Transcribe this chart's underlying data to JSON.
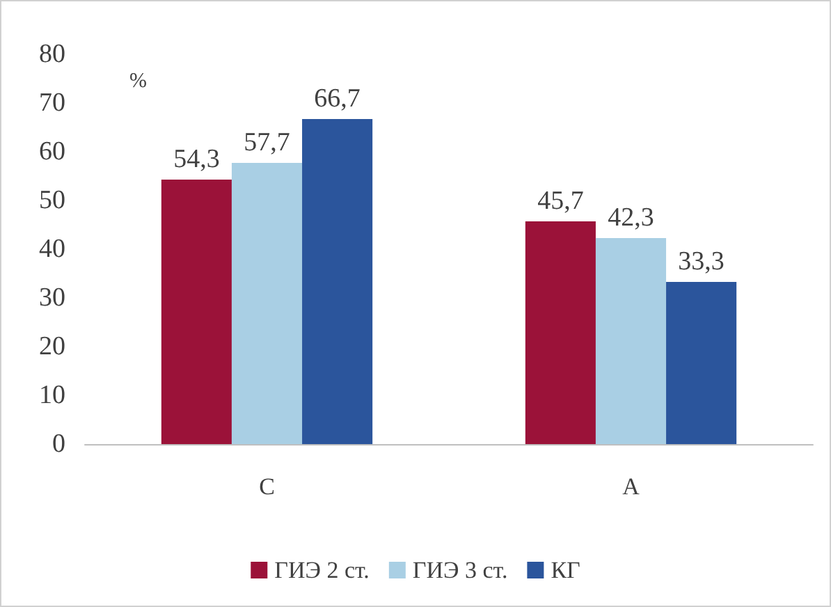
{
  "chart_data": {
    "type": "bar",
    "ylabel": "%",
    "categories": [
      "C",
      "A"
    ],
    "series": [
      {
        "name": "ГИЭ 2 ст.",
        "color": "#9b1239",
        "values": [
          54.3,
          45.7
        ],
        "value_labels": [
          "54,3",
          "45,7"
        ]
      },
      {
        "name": "ГИЭ 3 ст.",
        "color": "#a9cfe4",
        "values": [
          57.7,
          42.3
        ],
        "value_labels": [
          "57,7",
          "42,3"
        ]
      },
      {
        "name": "КГ",
        "color": "#2b559c",
        "values": [
          66.7,
          33.3
        ],
        "value_labels": [
          "66,7",
          "33,3"
        ]
      }
    ],
    "ylim": [
      0,
      80
    ],
    "yticks": [
      0,
      10,
      20,
      30,
      40,
      50,
      60,
      70,
      80
    ],
    "grid": false,
    "legend": "bottom"
  }
}
